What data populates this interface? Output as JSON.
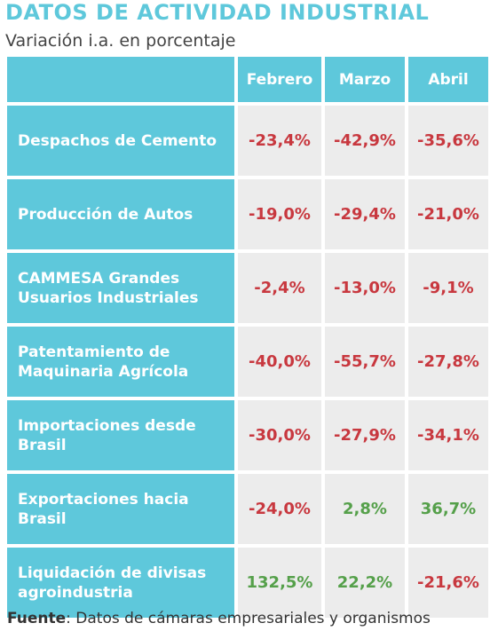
{
  "title": "DATOS DE ACTIVIDAD INDUSTRIAL",
  "subtitle": "Variación i.a. en porcentaje",
  "columns": [
    "Febrero",
    "Marzo",
    "Abril"
  ],
  "rows": [
    {
      "label": "Despachos de Cemento",
      "values": [
        "-23,4%",
        "-42,9%",
        "-35,6%"
      ]
    },
    {
      "label": "Producción de Autos",
      "values": [
        "-19,0%",
        "-29,4%",
        "-21,0%"
      ]
    },
    {
      "label": "CAMMESA Grandes Usuarios Industriales",
      "values": [
        "-2,4%",
        "-13,0%",
        "-9,1%"
      ]
    },
    {
      "label": "Patentamiento de Maquinaria Agrícola",
      "values": [
        "-40,0%",
        "-55,7%",
        "-27,8%"
      ]
    },
    {
      "label": "Importaciones desde Brasil",
      "values": [
        "-30,0%",
        "-27,9%",
        "-34,1%"
      ]
    },
    {
      "label": "Exportaciones hacia Brasil",
      "values": [
        "-24,0%",
        "2,8%",
        "36,7%"
      ]
    },
    {
      "label": "Liquidación de divisas agroindustria",
      "values": [
        "132,5%",
        "22,2%",
        "-21,6%"
      ]
    }
  ],
  "colors": {
    "header_bg": "#5ec8db",
    "cell_bg": "#ececec",
    "negative": "#c8383f",
    "positive": "#55a04a"
  },
  "footer": {
    "label": "Fuente",
    "text": ": Datos de cámaras empresariales y organismos"
  }
}
